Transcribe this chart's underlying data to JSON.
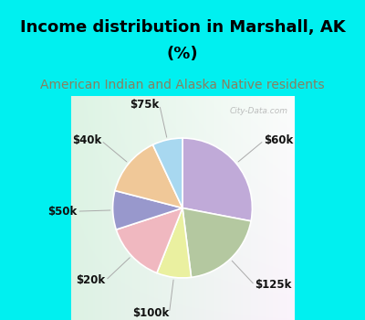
{
  "title_line1": "Income distribution in Marshall, AK",
  "title_line2": "(%)",
  "subtitle": "American Indian and Alaska Native residents",
  "slices": [
    {
      "label": "$60k",
      "value": 28,
      "color": "#c0aad8"
    },
    {
      "label": "$125k",
      "value": 20,
      "color": "#b4c8a0"
    },
    {
      "label": "$100k",
      "value": 8,
      "color": "#eaf0a0"
    },
    {
      "label": "$20k",
      "value": 14,
      "color": "#f0b8c0"
    },
    {
      "label": "$50k",
      "value": 9,
      "color": "#9898cc"
    },
    {
      "label": "$40k",
      "value": 14,
      "color": "#f0c898"
    },
    {
      "label": "$75k",
      "value": 7,
      "color": "#a8d8f0"
    }
  ],
  "title_color": "#000000",
  "subtitle_color": "#888060",
  "bg_cyan": "#00f0f0",
  "title_fontsize": 13,
  "subtitle_fontsize": 10,
  "label_fontsize": 8.5,
  "watermark": "City-Data.com"
}
